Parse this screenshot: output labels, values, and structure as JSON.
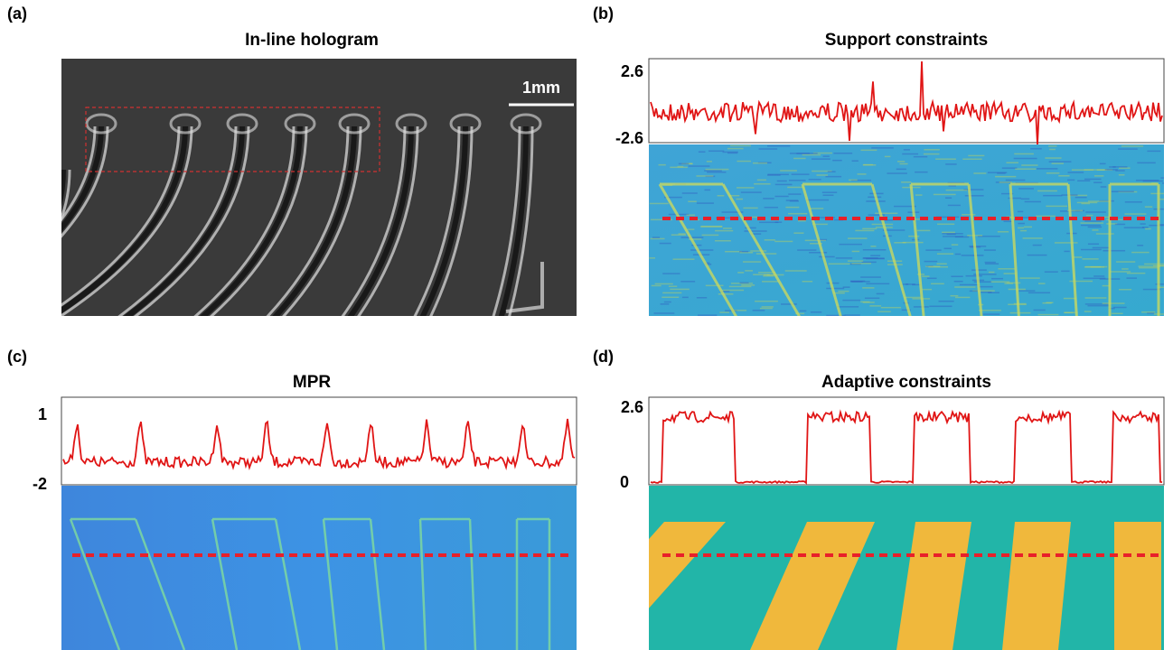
{
  "panels": [
    {
      "label": "(a)",
      "title": "In-line hologram",
      "scale_bar": "1mm"
    },
    {
      "label": "(b)",
      "title": "Support constraints",
      "yticks": [
        "2.6",
        "-2.6"
      ]
    },
    {
      "label": "(c)",
      "title": "MPR",
      "yticks": [
        "1",
        "-2"
      ]
    },
    {
      "label": "(d)",
      "title": "Adaptive constraints",
      "yticks": [
        "2.6",
        "0"
      ]
    }
  ]
}
